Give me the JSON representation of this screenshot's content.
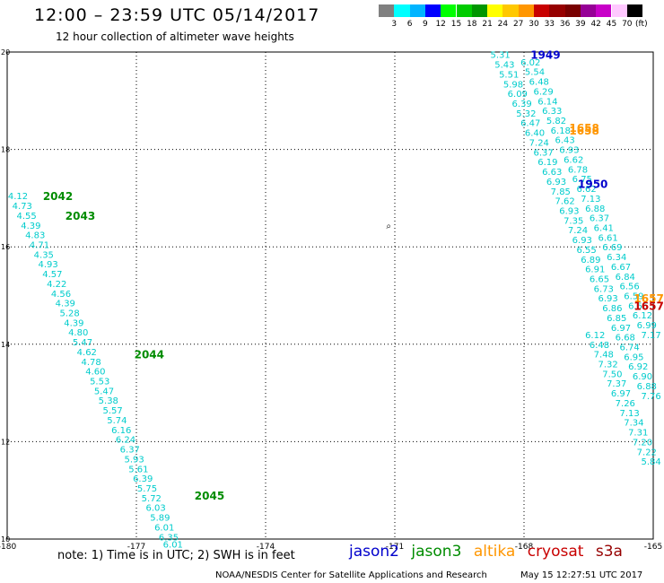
{
  "header": {
    "title": "12:00 – 23:59 UTC 05/14/2017",
    "subtitle": "12 hour collection of altimeter wave heights"
  },
  "colorbar": {
    "unit": "(ft)",
    "colors": [
      "#808080",
      "#00ffff",
      "#00b4ff",
      "#0000ff",
      "#00ff00",
      "#00cc00",
      "#009600",
      "#ffff00",
      "#ffc800",
      "#ff9600",
      "#c80000",
      "#960000",
      "#780000",
      "#960096",
      "#c800c8",
      "#ffc8ff",
      "#000000"
    ],
    "labels": [
      "3",
      "6",
      "9",
      "12",
      "15",
      "18",
      "21",
      "24",
      "27",
      "30",
      "33",
      "36",
      "39",
      "42",
      "45",
      "70"
    ]
  },
  "map": {
    "lon_min": -180,
    "lon_max": -165,
    "lat_min": 10,
    "lat_max": 20,
    "x_ticks": [
      "-180",
      "-177",
      "-174",
      "-171",
      "-168",
      "-165"
    ],
    "y_ticks": [
      "20",
      "18",
      "16",
      "14",
      "12",
      "10"
    ],
    "coast_marker": "⌕"
  },
  "footer": {
    "note": "note: 1) Time is in UTC; 2) SWH is in feet",
    "credit": "NOAA/NESDIS Center for Satellite Applications and Research",
    "timestamp": "May 15 12:27:51 UTC 2017"
  },
  "satellites": [
    {
      "name": "jason2",
      "color": "#0000cc"
    },
    {
      "name": "jason3",
      "color": "#008c00"
    },
    {
      "name": "altika",
      "color": "#ff9600"
    },
    {
      "name": "cryosat",
      "color": "#c80000"
    },
    {
      "name": "s3a",
      "color": "#960000"
    }
  ],
  "chart_data": {
    "type": "scatter",
    "x_range": [
      -180,
      -165
    ],
    "y_range": [
      10,
      20
    ],
    "track_color": "#00cccc",
    "time_labels": [
      {
        "text": "2042",
        "lon": -179.17,
        "lat": 17.05,
        "satellite": "jason3"
      },
      {
        "text": "2043",
        "lon": -178.65,
        "lat": 16.65,
        "satellite": "jason3"
      },
      {
        "text": "2044",
        "lon": -177.05,
        "lat": 13.8,
        "satellite": "jason3"
      },
      {
        "text": "2045",
        "lon": -175.65,
        "lat": 10.9,
        "satellite": "jason3"
      },
      {
        "text": "1949",
        "lon": -167.85,
        "lat": 19.95,
        "satellite": "jason2"
      },
      {
        "text": "1950",
        "lon": -166.75,
        "lat": 17.3,
        "satellite": "jason2"
      },
      {
        "text": "1658",
        "lon": -166.95,
        "lat": 18.45,
        "satellite": "altika"
      },
      {
        "text": "1658",
        "lon": -166.95,
        "lat": 18.4,
        "satellite": "altika"
      },
      {
        "text": "1657",
        "lon": -165.45,
        "lat": 14.95,
        "satellite": "altika"
      },
      {
        "text": "1657",
        "lon": -165.45,
        "lat": 14.8,
        "satellite": "cryosat"
      }
    ],
    "west_track": [
      {
        "lon": -179.75,
        "lat": 17.05,
        "swh": 4.12
      },
      {
        "lon": -179.65,
        "lat": 16.85,
        "swh": 4.73
      },
      {
        "lon": -179.55,
        "lat": 16.65,
        "swh": 4.55
      },
      {
        "lon": -179.45,
        "lat": 16.45,
        "swh": 4.39
      },
      {
        "lon": -179.35,
        "lat": 16.25,
        "swh": 4.83
      },
      {
        "lon": -179.25,
        "lat": 16.05,
        "swh": 4.71
      },
      {
        "lon": -179.15,
        "lat": 15.85,
        "swh": 4.35
      },
      {
        "lon": -179.05,
        "lat": 15.65,
        "swh": 4.93
      },
      {
        "lon": -178.95,
        "lat": 15.45,
        "swh": 4.57
      },
      {
        "lon": -178.85,
        "lat": 15.25,
        "swh": 4.22
      },
      {
        "lon": -178.75,
        "lat": 15.05,
        "swh": 4.56
      },
      {
        "lon": -178.65,
        "lat": 14.85,
        "swh": 4.39
      },
      {
        "lon": -178.55,
        "lat": 14.65,
        "swh": 5.28
      },
      {
        "lon": -178.45,
        "lat": 14.45,
        "swh": 4.39
      },
      {
        "lon": -178.35,
        "lat": 14.25,
        "swh": 4.8
      },
      {
        "lon": -178.25,
        "lat": 14.05,
        "swh": 5.47
      },
      {
        "lon": -178.15,
        "lat": 13.85,
        "swh": 4.62
      },
      {
        "lon": -178.05,
        "lat": 13.65,
        "swh": 4.78
      },
      {
        "lon": -177.95,
        "lat": 13.45,
        "swh": 4.6
      },
      {
        "lon": -177.85,
        "lat": 13.25,
        "swh": 5.53
      },
      {
        "lon": -177.75,
        "lat": 13.05,
        "swh": 5.47
      },
      {
        "lon": -177.65,
        "lat": 12.85,
        "swh": 5.38
      },
      {
        "lon": -177.55,
        "lat": 12.65,
        "swh": 5.57
      },
      {
        "lon": -177.45,
        "lat": 12.45,
        "swh": 5.74
      },
      {
        "lon": -177.35,
        "lat": 12.25,
        "swh": 6.16
      },
      {
        "lon": -177.25,
        "lat": 12.05,
        "swh": 6.24
      },
      {
        "lon": -177.15,
        "lat": 11.85,
        "swh": 6.37
      },
      {
        "lon": -177.05,
        "lat": 11.65,
        "swh": 5.93
      },
      {
        "lon": -176.95,
        "lat": 11.45,
        "swh": 5.61
      },
      {
        "lon": -176.85,
        "lat": 11.25,
        "swh": 6.39
      },
      {
        "lon": -176.75,
        "lat": 11.05,
        "swh": 5.75
      },
      {
        "lon": -176.65,
        "lat": 10.85,
        "swh": 5.72
      },
      {
        "lon": -176.55,
        "lat": 10.65,
        "swh": 6.03
      },
      {
        "lon": -176.45,
        "lat": 10.45,
        "swh": 5.89
      },
      {
        "lon": -176.35,
        "lat": 10.25,
        "swh": 6.01
      },
      {
        "lon": -176.25,
        "lat": 10.05,
        "swh": 6.35
      },
      {
        "lon": -176.15,
        "lat": 9.9,
        "swh": 6.01
      }
    ],
    "east_track_a": [
      {
        "lon": -168.55,
        "lat": 19.95,
        "swh": 5.31
      },
      {
        "lon": -168.45,
        "lat": 19.75,
        "swh": 5.43
      },
      {
        "lon": -168.35,
        "lat": 19.55,
        "swh": 5.51
      },
      {
        "lon": -168.25,
        "lat": 19.35,
        "swh": 5.98
      },
      {
        "lon": -168.15,
        "lat": 19.15,
        "swh": 6.09
      },
      {
        "lon": -168.05,
        "lat": 18.95,
        "swh": 6.39
      },
      {
        "lon": -167.95,
        "lat": 18.75,
        "swh": 5.32
      },
      {
        "lon": -167.85,
        "lat": 18.55,
        "swh": 6.47
      },
      {
        "lon": -167.75,
        "lat": 18.35,
        "swh": 6.4
      },
      {
        "lon": -167.65,
        "lat": 18.15,
        "swh": 7.24
      },
      {
        "lon": -167.55,
        "lat": 17.95,
        "swh": 6.37
      },
      {
        "lon": -167.45,
        "lat": 17.75,
        "swh": 6.19
      },
      {
        "lon": -167.35,
        "lat": 17.55,
        "swh": 6.63
      },
      {
        "lon": -167.25,
        "lat": 17.35,
        "swh": 6.93
      },
      {
        "lon": -167.15,
        "lat": 17.15,
        "swh": 7.85
      },
      {
        "lon": -167.05,
        "lat": 16.95,
        "swh": 7.62
      },
      {
        "lon": -166.95,
        "lat": 16.75,
        "swh": 6.93
      },
      {
        "lon": -166.85,
        "lat": 16.55,
        "swh": 7.35
      },
      {
        "lon": -166.75,
        "lat": 16.35,
        "swh": 7.24
      },
      {
        "lon": -166.65,
        "lat": 16.15,
        "swh": 6.93
      },
      {
        "lon": -166.55,
        "lat": 15.95,
        "swh": 6.55
      },
      {
        "lon": -166.45,
        "lat": 15.75,
        "swh": 6.89
      },
      {
        "lon": -166.35,
        "lat": 15.55,
        "swh": 6.91
      },
      {
        "lon": -166.25,
        "lat": 15.35,
        "swh": 6.65
      },
      {
        "lon": -166.15,
        "lat": 15.15,
        "swh": 6.73
      },
      {
        "lon": -166.05,
        "lat": 14.95,
        "swh": 6.93
      },
      {
        "lon": -165.95,
        "lat": 14.75,
        "swh": 6.86
      },
      {
        "lon": -165.85,
        "lat": 14.55,
        "swh": 6.85
      },
      {
        "lon": -165.75,
        "lat": 14.35,
        "swh": 6.97
      },
      {
        "lon": -165.65,
        "lat": 14.15,
        "swh": 6.68
      },
      {
        "lon": -165.55,
        "lat": 13.95,
        "swh": 6.74
      },
      {
        "lon": -165.45,
        "lat": 13.75,
        "swh": 6.95
      },
      {
        "lon": -165.35,
        "lat": 13.55,
        "swh": 6.92
      },
      {
        "lon": -165.25,
        "lat": 13.35,
        "swh": 6.9
      },
      {
        "lon": -165.15,
        "lat": 13.15,
        "swh": 6.88
      },
      {
        "lon": -165.05,
        "lat": 12.95,
        "swh": 7.76
      }
    ],
    "east_track_b": [
      {
        "lon": -167.85,
        "lat": 19.8,
        "swh": 6.02
      },
      {
        "lon": -167.75,
        "lat": 19.6,
        "swh": 5.54
      },
      {
        "lon": -167.65,
        "lat": 19.4,
        "swh": 6.48
      },
      {
        "lon": -167.55,
        "lat": 19.2,
        "swh": 6.29
      },
      {
        "lon": -167.45,
        "lat": 19.0,
        "swh": 6.14
      },
      {
        "lon": -167.35,
        "lat": 18.8,
        "swh": 6.33
      },
      {
        "lon": -167.25,
        "lat": 18.6,
        "swh": 5.82
      },
      {
        "lon": -167.15,
        "lat": 18.4,
        "swh": 6.18
      },
      {
        "lon": -167.05,
        "lat": 18.2,
        "swh": 6.43
      },
      {
        "lon": -166.95,
        "lat": 18.0,
        "swh": 6.93
      },
      {
        "lon": -166.85,
        "lat": 17.8,
        "swh": 6.62
      },
      {
        "lon": -166.75,
        "lat": 17.6,
        "swh": 6.78
      },
      {
        "lon": -166.65,
        "lat": 17.4,
        "swh": 6.75
      },
      {
        "lon": -166.55,
        "lat": 17.2,
        "swh": 6.62
      },
      {
        "lon": -166.45,
        "lat": 17.0,
        "swh": 7.13
      },
      {
        "lon": -166.35,
        "lat": 16.8,
        "swh": 6.88
      },
      {
        "lon": -166.25,
        "lat": 16.6,
        "swh": 6.37
      },
      {
        "lon": -166.15,
        "lat": 16.4,
        "swh": 6.41
      },
      {
        "lon": -166.05,
        "lat": 16.2,
        "swh": 6.61
      },
      {
        "lon": -165.95,
        "lat": 16.0,
        "swh": 6.69
      },
      {
        "lon": -165.85,
        "lat": 15.8,
        "swh": 6.34
      },
      {
        "lon": -165.75,
        "lat": 15.6,
        "swh": 6.67
      },
      {
        "lon": -165.65,
        "lat": 15.4,
        "swh": 6.84
      },
      {
        "lon": -165.55,
        "lat": 15.2,
        "swh": 6.56
      },
      {
        "lon": -165.45,
        "lat": 15.0,
        "swh": 6.59
      },
      {
        "lon": -165.35,
        "lat": 14.8,
        "swh": 6.56
      },
      {
        "lon": -165.25,
        "lat": 14.6,
        "swh": 6.12
      },
      {
        "lon": -165.15,
        "lat": 14.4,
        "swh": 6.99
      },
      {
        "lon": -165.05,
        "lat": 14.2,
        "swh": 7.17
      }
    ],
    "east_track_c": [
      {
        "lon": -166.35,
        "lat": 14.2,
        "swh": 6.12
      },
      {
        "lon": -166.25,
        "lat": 14.0,
        "swh": 6.48
      },
      {
        "lon": -166.15,
        "lat": 13.8,
        "swh": 7.48
      },
      {
        "lon": -166.05,
        "lat": 13.6,
        "swh": 7.32
      },
      {
        "lon": -165.95,
        "lat": 13.4,
        "swh": 7.5
      },
      {
        "lon": -165.85,
        "lat": 13.2,
        "swh": 7.37
      },
      {
        "lon": -165.75,
        "lat": 13.0,
        "swh": 6.97
      },
      {
        "lon": -165.65,
        "lat": 12.8,
        "swh": 7.26
      },
      {
        "lon": -165.55,
        "lat": 12.6,
        "swh": 7.13
      },
      {
        "lon": -165.45,
        "lat": 12.4,
        "swh": 7.34
      },
      {
        "lon": -165.35,
        "lat": 12.2,
        "swh": 7.31
      },
      {
        "lon": -165.25,
        "lat": 12.0,
        "swh": 7.2
      },
      {
        "lon": -165.15,
        "lat": 11.8,
        "swh": 7.22
      },
      {
        "lon": -165.05,
        "lat": 11.6,
        "swh": 5.84
      }
    ]
  }
}
